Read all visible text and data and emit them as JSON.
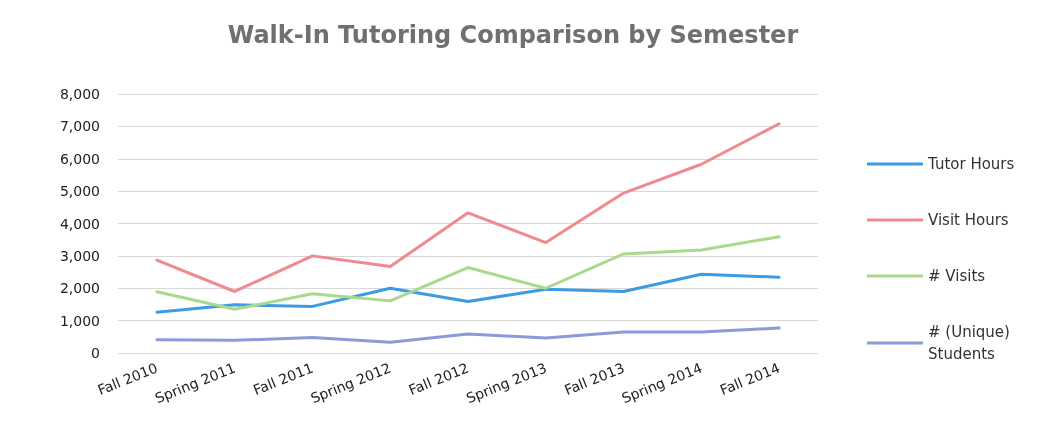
{
  "chart_data": {
    "type": "line",
    "title": "Walk-In Tutoring Comparison by Semester",
    "categories": [
      "Fall 2010",
      "Spring 2011",
      "Fall 2011",
      "Spring 2012",
      "Fall 2012",
      "Spring 2013",
      "Fall 2013",
      "Spring 2014",
      "Fall 2014"
    ],
    "series": [
      {
        "name": "Tutor Hours",
        "color": "#3d9be3",
        "values": [
          1260,
          1490,
          1440,
          2000,
          1590,
          1970,
          1900,
          2430,
          2340
        ]
      },
      {
        "name": "Visit Hours",
        "color": "#ef8a8e",
        "values": [
          2870,
          1900,
          3000,
          2670,
          4330,
          3410,
          4940,
          5830,
          7080
        ]
      },
      {
        "name": "# Visits",
        "color": "#a9d98d",
        "values": [
          1890,
          1350,
          1830,
          1610,
          2640,
          2000,
          3060,
          3180,
          3590
        ]
      },
      {
        "name": "# (Unique) Students",
        "color": "#8c9ad8",
        "values": [
          410,
          390,
          480,
          330,
          590,
          460,
          650,
          650,
          770
        ]
      }
    ],
    "ylim": [
      0,
      8000
    ],
    "yticks": [
      0,
      {
        "value": 1000,
        "label": "1,000"
      },
      {
        "value": 2000,
        "label": "2,000"
      },
      {
        "value": 3000,
        "label": "3,000"
      },
      {
        "value": 4000,
        "label": "4,000"
      },
      {
        "value": 5000,
        "label": "5,000"
      },
      {
        "value": 6000,
        "label": "6,000"
      },
      {
        "value": 7000,
        "label": "7,000"
      },
      {
        "value": 8000,
        "label": "8,000"
      }
    ],
    "grid": "y",
    "legend": "right",
    "marker": "none",
    "line_style": "solid"
  }
}
